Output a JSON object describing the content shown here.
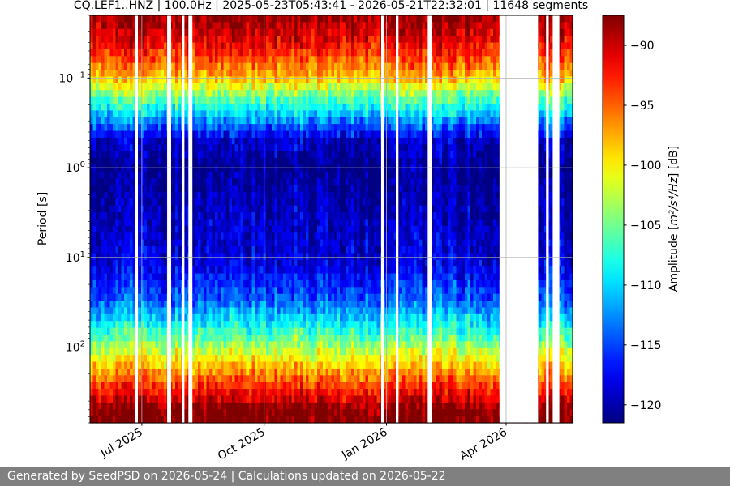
{
  "chart_data": {
    "type": "heatmap",
    "title": "CQ.LEF1..HNZ | 100.0Hz | 2025-05-23T05:43:41 - 2026-05-21T22:32:01 | 11648 segments",
    "ylabel": "Period [s]",
    "y_scale": "log",
    "y_inverted": true,
    "y_range": [
      0.02,
      700
    ],
    "y_ticks": [
      {
        "value": 0.1,
        "label": "10",
        "exp": "−1"
      },
      {
        "value": 1,
        "label": "10",
        "exp": "0"
      },
      {
        "value": 10,
        "label": "10",
        "exp": "1"
      },
      {
        "value": 100,
        "label": "10",
        "exp": "2"
      }
    ],
    "x_range": [
      "2025-05-23",
      "2026-05-21"
    ],
    "x_ticks": [
      {
        "value": "2025-07-01",
        "label": "Jul 2025"
      },
      {
        "value": "2025-10-01",
        "label": "Oct 2025"
      },
      {
        "value": "2026-01-01",
        "label": "Jan 2026"
      },
      {
        "value": "2026-04-01",
        "label": "Apr 2026"
      }
    ],
    "grid": true,
    "colorbar": {
      "colormap": "jet",
      "range": [
        -121.5,
        -87.5
      ],
      "ticks": [
        -90,
        -95,
        -100,
        -105,
        -110,
        -115,
        -120
      ],
      "tick_labels": [
        "−90",
        "−95",
        "−100",
        "−105",
        "−110",
        "−115",
        "−120"
      ],
      "label_prefix": "Amplitude [",
      "label_units": "m²/s⁴/Hz",
      "label_suffix": "] [dB]"
    },
    "amplitude_profile_db": [
      {
        "period": 0.02,
        "db": -88
      },
      {
        "period": 0.04,
        "db": -91
      },
      {
        "period": 0.06,
        "db": -94
      },
      {
        "period": 0.1,
        "db": -98
      },
      {
        "period": 0.15,
        "db": -104
      },
      {
        "period": 0.25,
        "db": -110
      },
      {
        "period": 0.5,
        "db": -119
      },
      {
        "period": 1,
        "db": -121
      },
      {
        "period": 2,
        "db": -120
      },
      {
        "period": 5,
        "db": -119
      },
      {
        "period": 12,
        "db": -118
      },
      {
        "period": 30,
        "db": -114
      },
      {
        "period": 60,
        "db": -108
      },
      {
        "period": 100,
        "db": -103
      },
      {
        "period": 200,
        "db": -96
      },
      {
        "period": 350,
        "db": -91
      },
      {
        "period": 500,
        "db": -87
      }
    ],
    "data_gaps": [
      [
        "2025-06-26",
        "2025-06-28"
      ],
      [
        "2025-07-20",
        "2025-07-23"
      ],
      [
        "2025-07-31",
        "2025-08-02"
      ],
      [
        "2025-08-05",
        "2025-08-08"
      ],
      [
        "2025-12-28",
        "2025-12-30"
      ],
      [
        "2026-01-08",
        "2026-01-10"
      ],
      [
        "2026-02-01",
        "2026-02-04"
      ],
      [
        "2026-03-27",
        "2026-04-25"
      ],
      [
        "2026-05-01",
        "2026-05-03"
      ],
      [
        "2026-05-06",
        "2026-05-11"
      ]
    ]
  },
  "footer": {
    "text": "Generated by SeedPSD on 2026-05-24 | Calculations updated on 2026-05-22"
  }
}
